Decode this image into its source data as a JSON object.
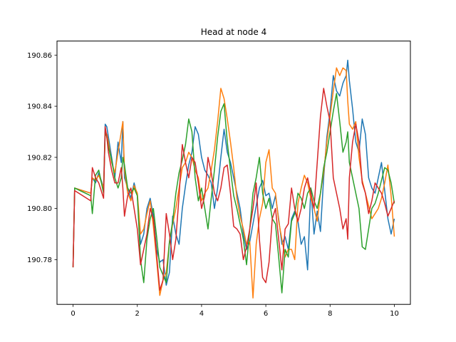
{
  "chart_data": {
    "type": "line",
    "title": "Head at node 4",
    "xlabel": "",
    "ylabel": "",
    "xlim": [
      -0.5,
      10.5
    ],
    "ylim": [
      190.7625,
      190.8655
    ],
    "xticks": [
      0,
      2,
      4,
      6,
      8,
      10
    ],
    "xtick_labels": [
      "0",
      "2",
      "4",
      "6",
      "8",
      "10"
    ],
    "yticks": [
      190.78,
      190.8,
      190.82,
      190.84,
      190.86
    ],
    "ytick_labels": [
      "190.78",
      "190.80",
      "190.82",
      "190.84",
      "190.86"
    ],
    "grid": false,
    "legend": false,
    "series": [
      {
        "color": "#1f77b4",
        "x": [
          0,
          0.05,
          0.55,
          0.6,
          0.7,
          0.8,
          0.95,
          1.0,
          1.05,
          1.1,
          1.2,
          1.3,
          1.4,
          1.5,
          1.55,
          1.6,
          1.7,
          1.8,
          1.9,
          2.0,
          2.1,
          2.2,
          2.3,
          2.4,
          2.5,
          2.6,
          2.7,
          2.8,
          2.9,
          3.0,
          3.1,
          3.2,
          3.3,
          3.4,
          3.5,
          3.6,
          3.7,
          3.8,
          3.9,
          4.0,
          4.1,
          4.2,
          4.3,
          4.4,
          4.5,
          4.6,
          4.7,
          4.8,
          4.9,
          5.0,
          5.1,
          5.2,
          5.3,
          5.4,
          5.5,
          5.6,
          5.7,
          5.8,
          5.9,
          6.0,
          6.1,
          6.2,
          6.3,
          6.4,
          6.5,
          6.6,
          6.7,
          6.8,
          6.9,
          7.0,
          7.1,
          7.2,
          7.3,
          7.4,
          7.5,
          7.6,
          7.7,
          7.8,
          7.9,
          8.0,
          8.1,
          8.2,
          8.3,
          8.4,
          8.5,
          8.55,
          8.6,
          8.7,
          8.8,
          8.9,
          9.0,
          9.1,
          9.2,
          9.3,
          9.4,
          9.5,
          9.6,
          9.7,
          9.8,
          9.9,
          10.0
        ],
        "values": [
          190.777,
          190.808,
          190.806,
          190.812,
          190.81,
          190.814,
          190.808,
          190.833,
          190.832,
          190.828,
          190.82,
          190.812,
          190.826,
          190.818,
          190.834,
          190.812,
          190.808,
          190.804,
          190.81,
          190.805,
          190.786,
          190.79,
          190.8,
          190.804,
          190.797,
          190.784,
          190.779,
          190.78,
          190.77,
          190.775,
          190.797,
          190.79,
          190.786,
          190.8,
          190.809,
          190.817,
          190.822,
          190.832,
          190.829,
          190.82,
          190.815,
          190.813,
          190.81,
          190.8,
          190.808,
          190.82,
          190.831,
          190.822,
          190.818,
          190.812,
          190.806,
          190.8,
          190.79,
          190.784,
          190.787,
          190.794,
          190.801,
          190.808,
          190.811,
          190.805,
          190.806,
          190.8,
          190.805,
          190.796,
          190.786,
          190.789,
          190.784,
          190.796,
          190.799,
          190.795,
          190.786,
          190.789,
          190.776,
          190.808,
          190.79,
          190.799,
          190.791,
          190.812,
          190.828,
          190.838,
          190.852,
          190.846,
          190.844,
          190.849,
          190.852,
          190.858,
          190.85,
          190.839,
          190.826,
          190.822,
          190.835,
          190.829,
          190.812,
          190.808,
          190.806,
          190.812,
          190.818,
          190.807,
          190.796,
          190.79,
          190.796
        ]
      },
      {
        "color": "#ff7f0e",
        "x": [
          0,
          0.05,
          0.55,
          0.6,
          0.7,
          0.8,
          0.95,
          1.0,
          1.05,
          1.1,
          1.2,
          1.3,
          1.4,
          1.5,
          1.55,
          1.6,
          1.7,
          1.8,
          1.9,
          2.0,
          2.1,
          2.2,
          2.3,
          2.4,
          2.5,
          2.6,
          2.7,
          2.8,
          2.9,
          3.0,
          3.1,
          3.2,
          3.3,
          3.4,
          3.5,
          3.6,
          3.7,
          3.8,
          3.9,
          4.0,
          4.1,
          4.2,
          4.3,
          4.4,
          4.5,
          4.6,
          4.7,
          4.8,
          4.9,
          5.0,
          5.1,
          5.2,
          5.3,
          5.4,
          5.5,
          5.6,
          5.7,
          5.8,
          5.9,
          6.0,
          6.1,
          6.2,
          6.3,
          6.4,
          6.5,
          6.6,
          6.7,
          6.8,
          6.9,
          7.0,
          7.1,
          7.2,
          7.3,
          7.4,
          7.5,
          7.6,
          7.7,
          7.8,
          7.9,
          8.0,
          8.1,
          8.2,
          8.3,
          8.4,
          8.5,
          8.55,
          8.6,
          8.7,
          8.8,
          8.9,
          9.0,
          9.1,
          9.2,
          9.3,
          9.4,
          9.5,
          9.6,
          9.7,
          9.8,
          9.9,
          10.0
        ],
        "values": [
          190.777,
          190.808,
          190.806,
          190.812,
          190.811,
          190.813,
          190.808,
          190.83,
          190.829,
          190.826,
          190.818,
          190.814,
          190.822,
          190.83,
          190.834,
          190.815,
          190.806,
          190.803,
          190.809,
          190.806,
          190.79,
          190.792,
          190.798,
          190.803,
          190.793,
          190.78,
          190.766,
          190.772,
          190.775,
          190.787,
          190.794,
          190.8,
          190.808,
          190.816,
          190.818,
          190.822,
          190.82,
          190.815,
          190.812,
          190.803,
          190.806,
          190.808,
          190.815,
          190.823,
          190.834,
          190.847,
          190.843,
          190.835,
          190.826,
          190.816,
          190.804,
          190.797,
          190.792,
          190.786,
          190.787,
          190.765,
          190.786,
          190.796,
          190.802,
          190.818,
          190.823,
          190.808,
          190.806,
          190.795,
          190.788,
          190.781,
          190.784,
          190.784,
          190.78,
          190.802,
          190.808,
          190.813,
          190.81,
          190.804,
          190.8,
          190.795,
          190.806,
          190.814,
          190.826,
          190.836,
          190.846,
          190.855,
          190.852,
          190.855,
          190.854,
          190.842,
          190.833,
          190.831,
          190.834,
          190.82,
          190.811,
          190.806,
          190.801,
          190.796,
          190.798,
          190.8,
          190.804,
          190.81,
          190.817,
          190.805,
          190.789
        ]
      },
      {
        "color": "#2ca02c",
        "x": [
          0,
          0.05,
          0.55,
          0.6,
          0.7,
          0.8,
          0.95,
          1.0,
          1.05,
          1.1,
          1.2,
          1.3,
          1.4,
          1.5,
          1.55,
          1.6,
          1.7,
          1.8,
          1.9,
          2.0,
          2.1,
          2.2,
          2.3,
          2.4,
          2.5,
          2.6,
          2.7,
          2.8,
          2.9,
          3.0,
          3.1,
          3.2,
          3.3,
          3.4,
          3.5,
          3.6,
          3.7,
          3.8,
          3.9,
          4.0,
          4.1,
          4.2,
          4.3,
          4.4,
          4.5,
          4.6,
          4.7,
          4.8,
          4.9,
          5.0,
          5.1,
          5.2,
          5.3,
          5.4,
          5.5,
          5.6,
          5.7,
          5.8,
          5.9,
          6.0,
          6.1,
          6.2,
          6.3,
          6.4,
          6.5,
          6.6,
          6.7,
          6.8,
          6.9,
          7.0,
          7.1,
          7.2,
          7.3,
          7.4,
          7.5,
          7.6,
          7.7,
          7.8,
          7.9,
          8.0,
          8.1,
          8.2,
          8.3,
          8.4,
          8.5,
          8.55,
          8.6,
          8.7,
          8.8,
          8.9,
          9.0,
          9.1,
          9.2,
          9.3,
          9.4,
          9.5,
          9.6,
          9.7,
          9.8,
          9.9,
          10.0
        ],
        "values": [
          190.777,
          190.808,
          190.805,
          190.798,
          190.813,
          190.815,
          190.806,
          190.83,
          190.828,
          190.824,
          190.819,
          190.812,
          190.808,
          190.812,
          190.82,
          190.817,
          190.808,
          190.806,
          190.808,
          190.805,
          190.78,
          190.771,
          190.788,
          190.796,
          190.8,
          190.789,
          190.777,
          190.774,
          190.771,
          190.787,
          190.795,
          190.806,
          190.814,
          190.819,
          190.825,
          190.835,
          190.83,
          190.812,
          190.803,
          190.808,
          190.8,
          190.792,
          190.804,
          190.815,
          190.828,
          190.838,
          190.841,
          190.826,
          190.815,
          190.805,
          190.8,
          190.794,
          190.788,
          190.778,
          190.792,
          190.806,
          190.812,
          190.82,
          190.806,
          190.8,
          190.804,
          190.796,
          190.794,
          190.781,
          190.767,
          190.784,
          190.781,
          190.795,
          190.798,
          190.806,
          190.804,
          190.8,
          190.806,
          190.808,
          190.803,
          190.8,
          190.806,
          190.816,
          190.822,
          190.83,
          190.838,
          190.845,
          190.834,
          190.822,
          190.826,
          190.83,
          190.818,
          190.812,
          190.806,
          190.8,
          190.785,
          190.784,
          190.792,
          190.8,
          190.802,
          190.806,
          190.811,
          190.816,
          190.815,
          190.81,
          190.802
        ]
      },
      {
        "color": "#d62728",
        "x": [
          0,
          0.05,
          0.55,
          0.6,
          0.7,
          0.8,
          0.95,
          1.0,
          1.05,
          1.1,
          1.2,
          1.3,
          1.4,
          1.5,
          1.55,
          1.6,
          1.7,
          1.8,
          1.9,
          2.0,
          2.1,
          2.2,
          2.3,
          2.4,
          2.5,
          2.6,
          2.7,
          2.8,
          2.9,
          3.0,
          3.1,
          3.2,
          3.3,
          3.4,
          3.5,
          3.6,
          3.7,
          3.8,
          3.9,
          4.0,
          4.1,
          4.2,
          4.3,
          4.4,
          4.5,
          4.6,
          4.7,
          4.8,
          4.9,
          5.0,
          5.1,
          5.2,
          5.3,
          5.4,
          5.5,
          5.6,
          5.7,
          5.8,
          5.9,
          6.0,
          6.1,
          6.2,
          6.3,
          6.4,
          6.5,
          6.6,
          6.7,
          6.8,
          6.9,
          7.0,
          7.1,
          7.2,
          7.3,
          7.4,
          7.5,
          7.6,
          7.7,
          7.8,
          7.9,
          8.0,
          8.1,
          8.2,
          8.3,
          8.4,
          8.5,
          8.55,
          8.6,
          8.7,
          8.8,
          8.9,
          9.0,
          9.1,
          9.2,
          9.3,
          9.4,
          9.5,
          9.6,
          9.7,
          9.8,
          9.9,
          10.0
        ],
        "values": [
          190.777,
          190.807,
          190.803,
          190.816,
          190.812,
          190.81,
          190.804,
          190.832,
          190.828,
          190.822,
          190.815,
          190.81,
          190.81,
          190.816,
          190.808,
          190.797,
          190.805,
          190.808,
          190.8,
          190.792,
          190.778,
          190.784,
          190.79,
          190.8,
          190.796,
          190.782,
          190.768,
          190.772,
          190.798,
          190.79,
          190.78,
          190.788,
          190.805,
          190.825,
          190.818,
          190.812,
          190.82,
          190.818,
          190.81,
          190.8,
          190.805,
          190.82,
          190.814,
          190.806,
          190.803,
          190.808,
          190.816,
          190.817,
          190.806,
          190.793,
          190.792,
          190.79,
          190.78,
          190.785,
          190.792,
          190.8,
          190.81,
          190.788,
          190.773,
          190.771,
          190.779,
          190.796,
          190.8,
          190.788,
          190.776,
          190.792,
          190.794,
          190.808,
          190.8,
          190.795,
          190.8,
          190.808,
          190.812,
          190.806,
          190.8,
          190.818,
          190.836,
          190.847,
          190.84,
          190.834,
          190.812,
          190.806,
          190.8,
          190.792,
          190.796,
          190.788,
          190.812,
          190.826,
          190.833,
          190.826,
          190.81,
          190.806,
          190.798,
          190.803,
          190.81,
          190.808,
          190.806,
          190.802,
          190.797,
          190.8,
          190.803
        ]
      }
    ]
  }
}
